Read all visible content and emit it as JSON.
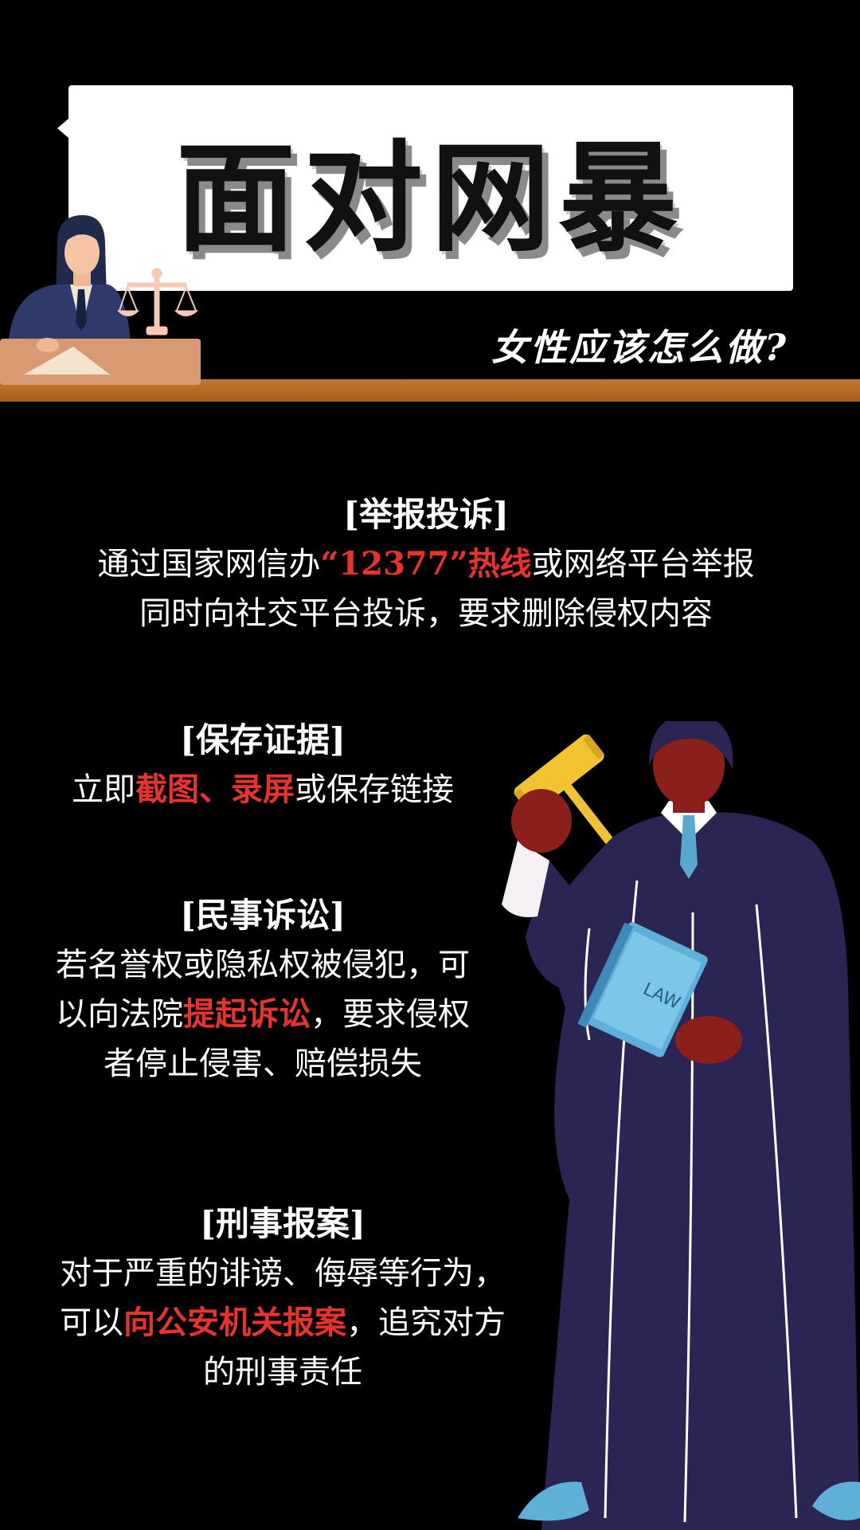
{
  "header": {
    "title": "面对网暴",
    "subtitle": "女性应该怎么做?"
  },
  "sections": [
    {
      "heading": "[举报投诉]",
      "lines": [
        [
          "通过国家网信办",
          {
            "hl": "“12377”热线"
          },
          "或网络平台举报"
        ],
        [
          "同时向社交平台投诉，要求删除侵权内容"
        ]
      ]
    },
    {
      "heading": "[保存证据]",
      "lines": [
        [
          "立即",
          {
            "hl": "截图、录屏"
          },
          "或保存链接"
        ]
      ]
    },
    {
      "heading": "[民事诉讼]",
      "lines": [
        [
          "若名誉权或隐私权被侵犯，可"
        ],
        [
          "以向法院",
          {
            "hl": "提起诉讼"
          },
          "，要求侵权"
        ],
        [
          "者停止侵害、赔偿损失"
        ]
      ]
    },
    {
      "heading": "[刑事报案]",
      "lines": [
        [
          "对于严重的诽谤、侮辱等行为，"
        ],
        [
          "可以",
          {
            "hl": "向公安机关报案"
          },
          "，追究对方"
        ],
        [
          "的刑事责任"
        ]
      ]
    }
  ],
  "book_label": "LAW",
  "colors": {
    "background": "#000000",
    "highlight": "#e8332d",
    "desk": "#c47a2c",
    "robe": "#2b2554"
  }
}
